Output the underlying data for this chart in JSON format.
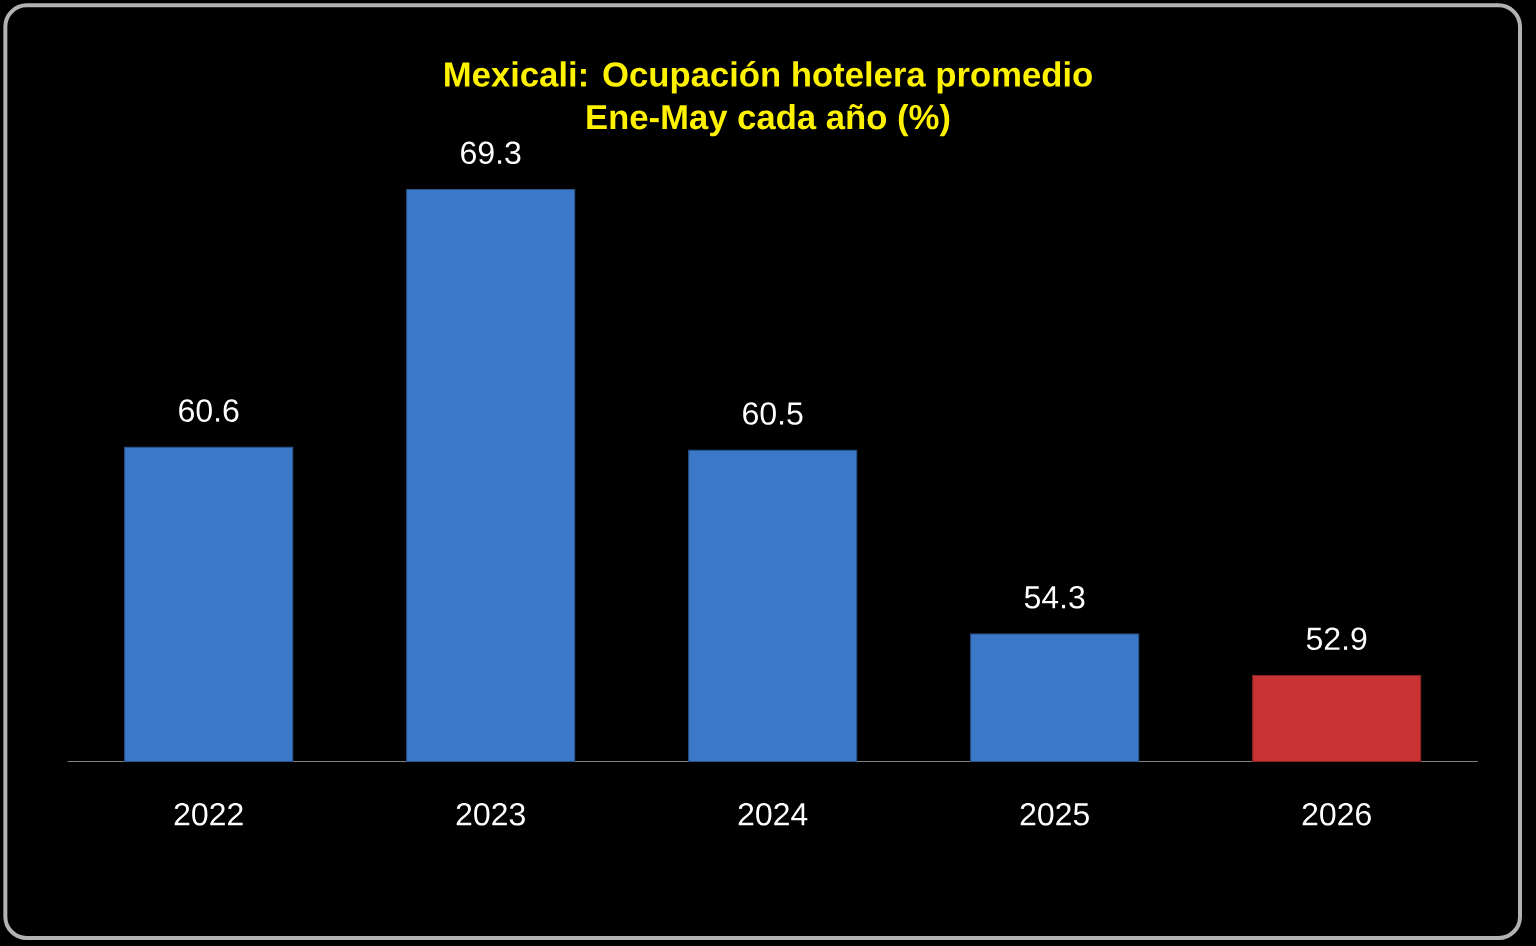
{
  "chart_data": {
    "type": "bar",
    "title": "Mexicali: Ocupación hotelera promedio\nEne-May cada año (%)",
    "categories": [
      "2022",
      "2023",
      "2024",
      "2025",
      "2026"
    ],
    "values": [
      60.6,
      69.3,
      60.5,
      54.3,
      52.9
    ],
    "colors": [
      "#3c78c8",
      "#3c78c8",
      "#3c78c8",
      "#3c78c8",
      "#c83232"
    ],
    "ylim": [
      50,
      69.3
    ],
    "data_labels": true
  }
}
